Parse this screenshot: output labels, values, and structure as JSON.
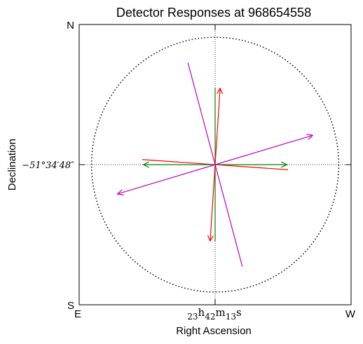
{
  "chart_data": {
    "type": "vector",
    "title": "Detector Responses at 968654558",
    "xlabel": "Right Ascension",
    "ylabel": "Declination",
    "x_tick_label": {
      "base": "23",
      "h": "h",
      "m_val": "42",
      "m": "m",
      "s_val": "13",
      "s": "s"
    },
    "y_tick_label": "−51°34′48″",
    "corner_labels": {
      "top_left": "N",
      "bottom_left": "S",
      "bottom_left_x": "E",
      "bottom_right": "W"
    },
    "xlim": [
      -1.1,
      1.1
    ],
    "ylim": [
      -1.1,
      1.1
    ],
    "circle_radius": 1.0,
    "grid": "crosshair at center",
    "colors": {
      "red": "#ff0000",
      "green": "#008000",
      "magenta": "#bf00bf",
      "black": "#000000"
    },
    "segments": [
      {
        "series": "magenta",
        "from": [
          -0.22,
          0.8
        ],
        "to": [
          0.22,
          -0.8
        ],
        "arrow": false
      },
      {
        "series": "red",
        "from": [
          -0.59,
          0.04
        ],
        "to": [
          0.59,
          -0.04
        ],
        "arrow": false
      },
      {
        "series": "green",
        "from": [
          0.0,
          0.6
        ],
        "to": [
          0.0,
          -0.6
        ],
        "arrow": false
      }
    ],
    "arrows": [
      {
        "series": "red",
        "from": [
          0,
          0
        ],
        "to": [
          0.04,
          0.6
        ]
      },
      {
        "series": "red",
        "from": [
          0,
          0
        ],
        "to": [
          -0.04,
          -0.6
        ]
      },
      {
        "series": "green",
        "from": [
          0,
          0
        ],
        "to": [
          0.58,
          0.0
        ]
      },
      {
        "series": "green",
        "from": [
          0,
          0
        ],
        "to": [
          -0.58,
          0.0
        ]
      },
      {
        "series": "magenta",
        "from": [
          0,
          0
        ],
        "to": [
          0.79,
          0.23
        ]
      },
      {
        "series": "magenta",
        "from": [
          0,
          0
        ],
        "to": [
          -0.79,
          -0.23
        ]
      }
    ]
  }
}
